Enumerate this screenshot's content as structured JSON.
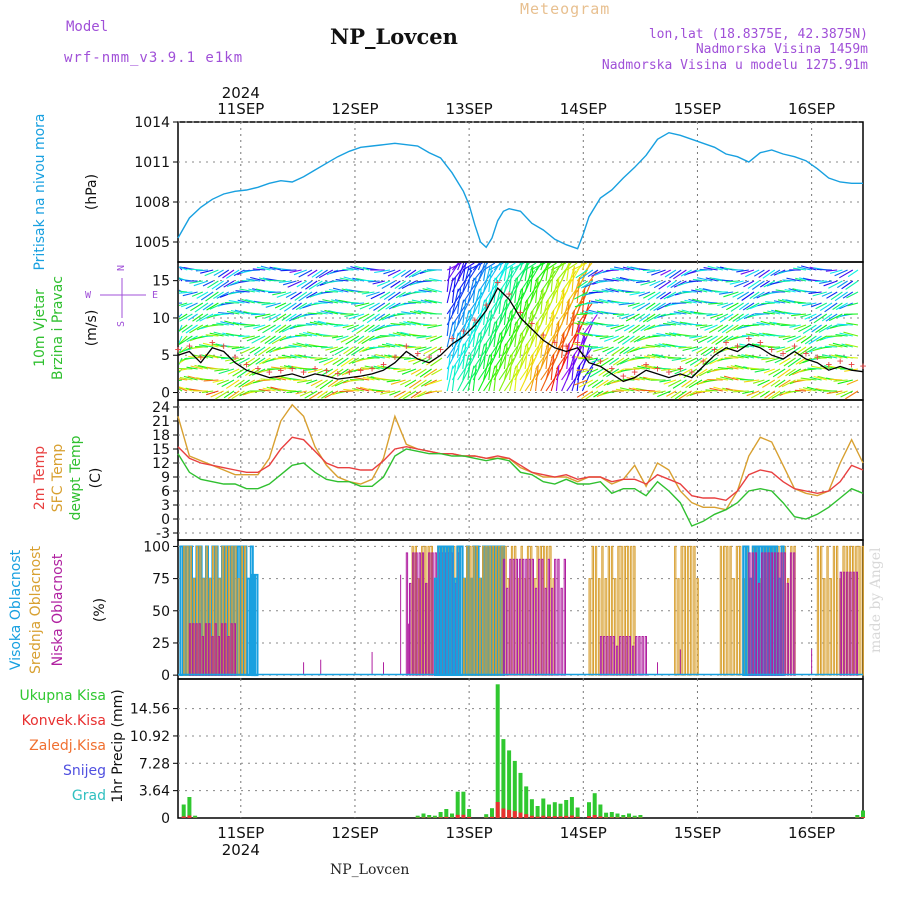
{
  "header": {
    "model_label": "Model",
    "model_name": "wrf-nmm_v3.9.1 e1km",
    "station": "NP_Lovcen",
    "meteogram": "Meteogram",
    "coords": "lon,lat (18.8375E, 42.3875N)",
    "elev": "Nadmorska Visina 1459m",
    "elev_model": "Nadmorska Visina u modelu 1275.91m",
    "footer": "NP_Lovcen",
    "credit": "made by Angel"
  },
  "colors": {
    "pressure": "#18a0e0",
    "temp2m": "#e84040",
    "sfctemp": "#d8a030",
    "dewpt": "#30c030",
    "high_cloud": "#18a0e0",
    "mid_cloud": "#d8a030",
    "low_cloud": "#b020a0",
    "total_precip": "#30c830",
    "conv_precip": "#e83030",
    "freezing": "#f07030",
    "snow": "#5050e0",
    "graupel": "#30c0c0",
    "violet": "#a050d8"
  },
  "chart_data": [
    {
      "type": "line",
      "name": "pressure",
      "ylabel": "Pritisak na nivou mora",
      "units": "(hPa)",
      "yticks": [
        1005,
        1008,
        1011,
        1014
      ],
      "ylim": [
        1003.5,
        1014
      ],
      "x_start_day": 10.5,
      "x_end_day": 16.5,
      "x": [
        10.5,
        10.6,
        10.7,
        10.8,
        10.9,
        11.0,
        11.1,
        11.2,
        11.3,
        11.4,
        11.5,
        11.6,
        11.7,
        11.8,
        11.9,
        12.0,
        12.1,
        12.2,
        12.3,
        12.4,
        12.5,
        12.6,
        12.7,
        12.8,
        12.9,
        13.0,
        13.05,
        13.1,
        13.15,
        13.2,
        13.25,
        13.3,
        13.35,
        13.4,
        13.5,
        13.6,
        13.7,
        13.8,
        13.9,
        14.0,
        14.05,
        14.1,
        14.2,
        14.3,
        14.4,
        14.5,
        14.6,
        14.7,
        14.8,
        14.9,
        15.0,
        15.1,
        15.2,
        15.3,
        15.4,
        15.5,
        15.6,
        15.7,
        15.8,
        15.9,
        16.0,
        16.1,
        16.2,
        16.3,
        16.4,
        16.5
      ],
      "y": [
        1005.3,
        1006.8,
        1007.6,
        1008.2,
        1008.6,
        1008.8,
        1008.9,
        1009.1,
        1009.4,
        1009.6,
        1009.5,
        1009.9,
        1010.4,
        1010.9,
        1011.4,
        1011.8,
        1012.1,
        1012.2,
        1012.3,
        1012.4,
        1012.3,
        1012.2,
        1011.7,
        1011.3,
        1010.2,
        1008.8,
        1007.8,
        1006.3,
        1005.0,
        1004.6,
        1005.3,
        1006.6,
        1007.3,
        1007.5,
        1007.3,
        1006.4,
        1005.9,
        1005.2,
        1004.8,
        1004.5,
        1005.6,
        1006.9,
        1008.3,
        1008.9,
        1009.8,
        1010.6,
        1011.5,
        1012.7,
        1013.2,
        1013.0,
        1012.7,
        1012.4,
        1012.1,
        1011.6,
        1011.4,
        1011.0,
        1011.7,
        1011.9,
        1011.6,
        1011.4,
        1011.1,
        1010.5,
        1009.8,
        1009.5,
        1009.4,
        1009.4
      ]
    },
    {
      "type": "line",
      "name": "wind",
      "ylabel": "10m Vjetar",
      "ylabel2": "Brzina i Pravac",
      "units": "(m/s)",
      "yticks": [
        0,
        5,
        10,
        15
      ],
      "ylim": [
        -1,
        17.5
      ],
      "compass": {
        "n": "N",
        "w": "W",
        "e": "E",
        "s": "S"
      },
      "x": [
        10.5,
        10.6,
        10.7,
        10.8,
        10.9,
        11.0,
        11.1,
        11.2,
        11.3,
        11.4,
        11.5,
        11.6,
        11.7,
        11.8,
        11.9,
        12.0,
        12.1,
        12.2,
        12.3,
        12.4,
        12.5,
        12.6,
        12.7,
        12.8,
        12.9,
        13.0,
        13.1,
        13.2,
        13.3,
        13.4,
        13.5,
        13.6,
        13.7,
        13.8,
        13.9,
        14.0,
        14.1,
        14.2,
        14.3,
        14.4,
        14.5,
        14.6,
        14.7,
        14.8,
        14.9,
        15.0,
        15.1,
        15.2,
        15.3,
        15.4,
        15.5,
        15.6,
        15.7,
        15.8,
        15.9,
        16.0,
        16.1,
        16.2,
        16.3,
        16.4,
        16.5
      ],
      "speed": [
        5.0,
        5.5,
        4.0,
        6.0,
        5.5,
        4.0,
        3.0,
        2.5,
        2.0,
        2.2,
        2.5,
        2.0,
        2.5,
        2.2,
        1.8,
        2.0,
        2.2,
        2.5,
        3.0,
        4.0,
        5.5,
        4.5,
        4.0,
        5.0,
        6.5,
        7.5,
        9.0,
        11.0,
        14.0,
        12.5,
        10.0,
        8.5,
        7.0,
        6.0,
        5.5,
        6.0,
        4.0,
        3.5,
        2.5,
        1.5,
        2.0,
        3.0,
        2.5,
        2.0,
        2.5,
        2.0,
        3.5,
        5.0,
        6.0,
        5.5,
        6.5,
        6.0,
        5.0,
        4.5,
        5.5,
        4.5,
        4.0,
        3.0,
        3.5,
        3.0,
        2.8
      ],
      "gust_markers": "+"
    },
    {
      "type": "line",
      "name": "temperature",
      "series_labels": [
        "2m Temp",
        "SFC Temp",
        "dewpt Temp"
      ],
      "units": "(C)",
      "yticks": [
        -3,
        0,
        3,
        6,
        9,
        12,
        15,
        18,
        21,
        24
      ],
      "ylim": [
        -4.5,
        25.5
      ],
      "x": [
        10.5,
        10.6,
        10.7,
        10.8,
        10.9,
        11.0,
        11.1,
        11.2,
        11.3,
        11.4,
        11.5,
        11.6,
        11.7,
        11.8,
        11.9,
        12.0,
        12.1,
        12.2,
        12.3,
        12.4,
        12.5,
        12.6,
        12.7,
        12.8,
        12.9,
        13.0,
        13.1,
        13.2,
        13.3,
        13.4,
        13.5,
        13.6,
        13.7,
        13.8,
        13.9,
        14.0,
        14.1,
        14.2,
        14.3,
        14.4,
        14.5,
        14.6,
        14.7,
        14.8,
        14.9,
        15.0,
        15.1,
        15.2,
        15.3,
        15.4,
        15.5,
        15.6,
        15.7,
        15.8,
        15.9,
        16.0,
        16.1,
        16.2,
        16.3,
        16.4,
        16.5
      ],
      "series": [
        {
          "name": "2m Temp",
          "values": [
            15.5,
            13.0,
            12.0,
            11.5,
            11.0,
            10.5,
            10.0,
            10.0,
            11.5,
            15.0,
            17.5,
            17.0,
            14.5,
            12.0,
            11.0,
            11.0,
            10.5,
            10.5,
            12.5,
            15.0,
            15.5,
            15.0,
            14.5,
            14.0,
            14.0,
            13.5,
            13.5,
            13.0,
            13.5,
            13.0,
            11.5,
            10.0,
            9.5,
            9.0,
            9.5,
            8.5,
            9.0,
            9.0,
            8.0,
            8.5,
            8.5,
            7.5,
            9.5,
            8.5,
            7.5,
            5.0,
            4.5,
            4.5,
            4.0,
            6.0,
            9.5,
            10.5,
            10.0,
            8.0,
            6.5,
            6.0,
            5.5,
            6.0,
            8.0,
            11.5,
            10.5
          ]
        },
        {
          "name": "SFC Temp",
          "values": [
            22.0,
            13.5,
            12.5,
            11.5,
            10.5,
            9.5,
            9.5,
            9.5,
            13.0,
            21.0,
            24.5,
            22.0,
            15.5,
            11.5,
            9.0,
            8.0,
            7.5,
            8.5,
            13.0,
            22.0,
            16.0,
            15.0,
            14.5,
            14.0,
            14.0,
            13.5,
            13.5,
            13.0,
            13.0,
            13.0,
            11.0,
            10.0,
            9.0,
            9.0,
            9.0,
            8.0,
            9.0,
            9.0,
            7.5,
            8.5,
            11.5,
            7.0,
            12.0,
            10.5,
            6.0,
            3.5,
            2.5,
            2.5,
            2.0,
            6.0,
            13.5,
            17.5,
            16.5,
            11.5,
            6.5,
            5.5,
            5.0,
            6.0,
            12.0,
            17.0,
            12.0
          ]
        },
        {
          "name": "dewpt Temp",
          "values": [
            14.0,
            10.0,
            8.5,
            8.0,
            7.5,
            7.5,
            6.5,
            6.5,
            7.5,
            9.5,
            11.5,
            12.0,
            10.0,
            8.5,
            8.0,
            8.0,
            7.0,
            7.0,
            9.0,
            13.5,
            15.0,
            14.5,
            14.0,
            14.0,
            13.5,
            13.5,
            13.0,
            12.5,
            13.0,
            12.5,
            10.0,
            9.5,
            8.0,
            7.5,
            8.5,
            7.5,
            7.5,
            8.0,
            5.5,
            6.5,
            6.5,
            5.0,
            8.0,
            6.0,
            3.5,
            -1.5,
            -0.5,
            1.0,
            2.0,
            3.5,
            6.0,
            6.5,
            6.0,
            3.5,
            0.5,
            0.0,
            1.0,
            2.5,
            4.5,
            6.5,
            5.5
          ]
        }
      ]
    },
    {
      "type": "bar",
      "name": "cloud",
      "series_labels": [
        "Visoka Oblacnost",
        "Srednja Oblacnost",
        "Niska Oblacnost"
      ],
      "units": "(%)",
      "yticks": [
        0,
        25,
        50,
        75,
        100
      ],
      "ylim": [
        -3,
        105
      ]
    },
    {
      "type": "bar",
      "name": "precip",
      "series_labels": [
        "Ukupna Kisa",
        "Konvek.Kisa",
        "Zaledj.Kisa",
        "Snijeg",
        "Grad"
      ],
      "ylabel": "1hr Precip (mm)",
      "yticks": [
        0,
        3.64,
        7.28,
        10.92,
        14.56
      ],
      "ylim": [
        0,
        18.5
      ],
      "x": [
        10.55,
        10.6,
        10.65,
        12.6,
        12.65,
        12.7,
        12.75,
        12.8,
        12.85,
        12.9,
        12.95,
        13.0,
        13.05,
        13.2,
        13.25,
        13.3,
        13.35,
        13.4,
        13.45,
        13.5,
        13.55,
        13.6,
        13.65,
        13.7,
        13.75,
        13.8,
        13.85,
        13.9,
        13.95,
        14.0,
        14.1,
        14.15,
        14.2,
        14.25,
        14.3,
        14.35,
        14.4,
        14.45,
        14.5,
        14.55,
        16.45,
        16.5
      ],
      "values": [
        1.8,
        2.8,
        0.3,
        0.3,
        0.6,
        0.4,
        0.3,
        0.8,
        1.2,
        0.6,
        3.5,
        3.5,
        1.2,
        0.5,
        1.3,
        17.8,
        10.5,
        9.0,
        7.6,
        6.0,
        4.2,
        2.5,
        1.6,
        2.6,
        1.8,
        2.1,
        1.9,
        2.4,
        2.8,
        1.4,
        2.1,
        3.3,
        1.8,
        0.7,
        0.8,
        0.6,
        0.4,
        0.6,
        0.3,
        0.4,
        0.4,
        1.0
      ]
    }
  ],
  "axis": {
    "year": "2024",
    "days": [
      "11SEP",
      "12SEP",
      "13SEP",
      "14SEP",
      "15SEP",
      "16SEP"
    ]
  }
}
